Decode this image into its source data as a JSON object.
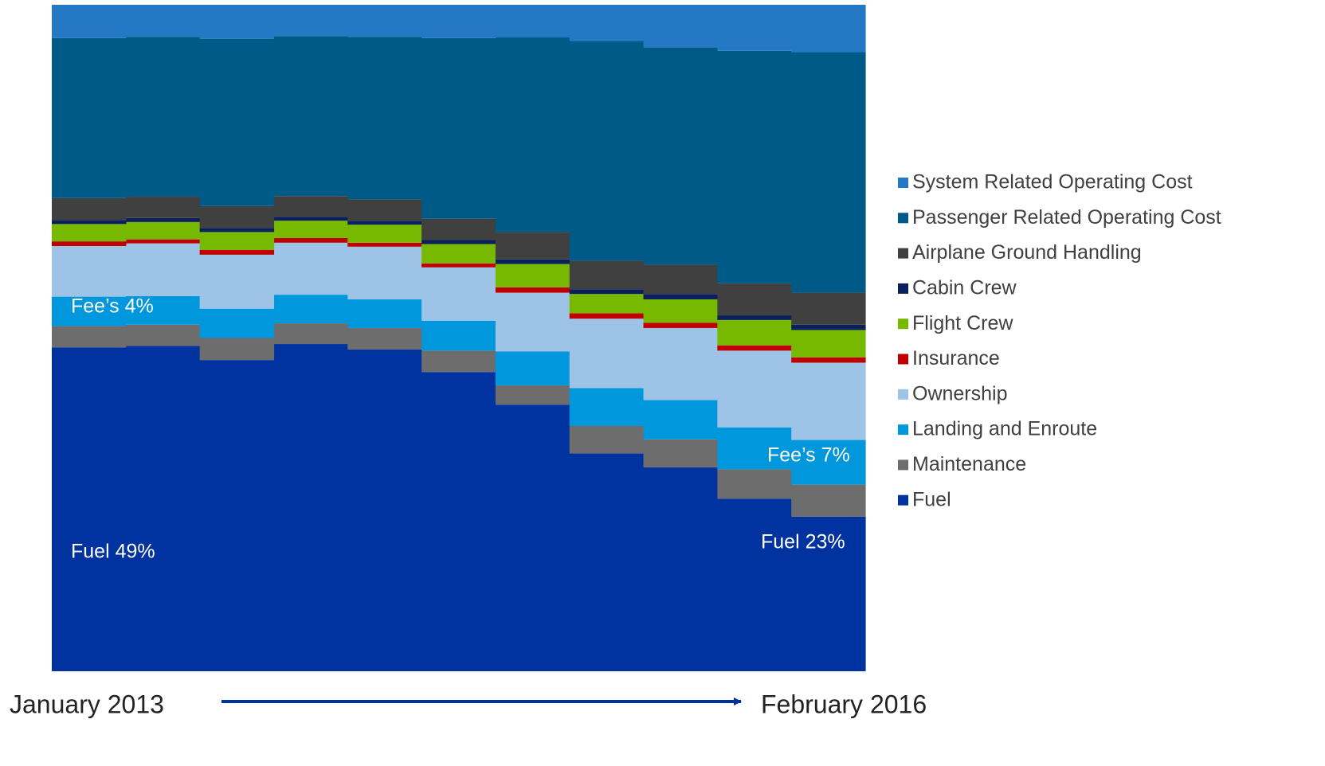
{
  "chart_data": {
    "type": "bar",
    "stacked": true,
    "categories": [
      null,
      null,
      null,
      null,
      null,
      null,
      null,
      null,
      null,
      null,
      null
    ],
    "ylim": [
      0,
      100
    ],
    "series": [
      {
        "name": "Fuel",
        "color": "#0033a0",
        "values": [
          48.6,
          48.8,
          46.7,
          49.1,
          48.3,
          44.9,
          40.0,
          32.7,
          30.6,
          25.9,
          23.2
        ]
      },
      {
        "name": "Maintenance",
        "color": "#6d6d6d",
        "values": [
          3.2,
          3.2,
          3.3,
          3.1,
          3.2,
          3.2,
          2.9,
          4.1,
          4.2,
          4.4,
          4.8
        ]
      },
      {
        "name": "Landing and Enroute",
        "color": "#0097dc",
        "values": [
          4.4,
          4.3,
          4.4,
          4.3,
          4.3,
          4.5,
          5.1,
          5.7,
          5.9,
          6.3,
          6.7
        ]
      },
      {
        "name": "Ownership",
        "color": "#9dc3e6",
        "values": [
          7.6,
          7.9,
          8.1,
          7.8,
          7.9,
          8.0,
          8.8,
          10.4,
          10.8,
          11.5,
          11.6
        ]
      },
      {
        "name": "Insurance",
        "color": "#c00000",
        "values": [
          0.7,
          0.6,
          0.7,
          0.7,
          0.6,
          0.6,
          0.8,
          0.8,
          0.8,
          0.8,
          0.8
        ]
      },
      {
        "name": "Flight Crew",
        "color": "#76b900",
        "values": [
          2.6,
          2.6,
          2.7,
          2.6,
          2.7,
          2.9,
          3.5,
          2.9,
          3.5,
          3.8,
          4.1
        ]
      },
      {
        "name": "Cabin Crew",
        "color": "#0a1f5c",
        "values": [
          0.6,
          0.6,
          0.6,
          0.6,
          0.6,
          0.6,
          0.7,
          0.7,
          0.8,
          0.7,
          0.8
        ]
      },
      {
        "name": "Airplane Ground Handling",
        "color": "#404040",
        "values": [
          3.3,
          3.2,
          3.3,
          3.1,
          3.2,
          3.2,
          4.1,
          4.3,
          4.4,
          4.8,
          4.8
        ]
      },
      {
        "name": "Passenger Related Operating Cost",
        "color": "#005a87",
        "values": [
          24.0,
          24.0,
          25.1,
          24.0,
          24.4,
          27.1,
          29.2,
          33.0,
          32.6,
          34.9,
          36.1
        ]
      },
      {
        "name": "System Related Operating Cost",
        "color": "#2579c4",
        "values": [
          5.0,
          4.8,
          5.1,
          4.7,
          4.8,
          5.0,
          4.9,
          5.4,
          6.4,
          6.9,
          7.1
        ]
      }
    ],
    "annotations": [
      "Fee’s 4%",
      "Fee’s 7%",
      "Fuel 49%",
      "Fuel 23%"
    ],
    "x_start_label": "January 2013",
    "x_end_label": "February 2016"
  }
}
